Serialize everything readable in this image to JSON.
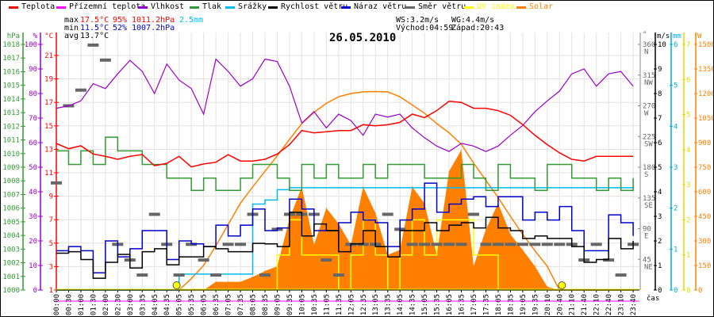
{
  "legend": [
    {
      "label": "Teplota",
      "color": "#ff0000"
    },
    {
      "label": "Přízemní teplota",
      "color": "#ff00ff"
    },
    {
      "label": "Vlhkost",
      "color": "#9900cc"
    },
    {
      "label": "Tlak",
      "color": "#339933"
    },
    {
      "label": "Srážky",
      "color": "#00bbee"
    },
    {
      "label": "Rychlost větru",
      "color": "#000000"
    },
    {
      "label": "Náraz větru",
      "color": "#0000cc"
    },
    {
      "label": "Směr větru",
      "color": "#666666"
    },
    {
      "label": "UV index",
      "color": "#ffff00"
    },
    {
      "label": "Solar",
      "color": "#ff8000"
    }
  ],
  "stats": {
    "max_label": "max",
    "max_temp": "17.5°C",
    "max_hum": "95%",
    "max_press": "1011.2hPa",
    "rain": "2.5mm",
    "min_label": "min",
    "min_temp": "11.5°C",
    "min_hum": "52%",
    "min_press": "1007.2hPa",
    "avg_label": "avg",
    "avg_temp": "13.7°C",
    "ws": "WS:3.2m/s",
    "wg": "WG:4.4m/s",
    "sunrise": "Východ:04:59",
    "sunset": "Západ:20:43"
  },
  "chart_data": {
    "type": "line",
    "title": "26.05.2010",
    "xlabel": "čas",
    "x": [
      "00:00",
      "00:30",
      "01:00",
      "01:30",
      "02:00",
      "02:30",
      "03:00",
      "03:35",
      "04:05",
      "04:35",
      "05:05",
      "05:35",
      "06:05",
      "06:35",
      "07:05",
      "07:35",
      "08:05",
      "08:35",
      "09:05",
      "09:35",
      "10:05",
      "10:35",
      "11:05",
      "11:35",
      "12:05",
      "12:35",
      "13:05",
      "13:35",
      "14:05",
      "14:35",
      "15:05",
      "15:35",
      "16:05",
      "16:35",
      "17:05",
      "17:35",
      "18:05",
      "18:35",
      "19:05",
      "19:35",
      "20:10",
      "20:40",
      "21:10",
      "21:40",
      "22:10",
      "22:40",
      "23:10",
      "23:40"
    ],
    "axes": {
      "hPa": {
        "unit": "hPa",
        "range": [
          1000,
          1018
        ],
        "ticks": [
          "1000",
          "1001",
          "1002",
          "1003",
          "1004",
          "1005",
          "1006",
          "1007",
          "1008",
          "1009",
          "1010",
          "1011",
          "1012",
          "1013",
          "1014",
          "1015",
          "1016",
          "1017",
          "1018"
        ]
      },
      "pct": {
        "unit": "%",
        "range": [
          0,
          100
        ],
        "ticks": [
          "0",
          "10",
          "20",
          "30",
          "40",
          "50",
          "60",
          "70",
          "80",
          "90",
          "100"
        ]
      },
      "degC": {
        "unit": "°C",
        "range": [
          1,
          21
        ],
        "ticks": [
          "1",
          "3",
          "5",
          "7",
          "9",
          "11",
          "13",
          "15",
          "17",
          "19",
          "21"
        ]
      },
      "deg": {
        "unit": "°",
        "range": [
          0,
          360
        ],
        "ticks": [
          {
            "v": 45,
            "t": "45",
            "d": "NE"
          },
          {
            "v": 90,
            "t": "90",
            "d": "E"
          },
          {
            "v": 135,
            "t": "135",
            "d": "SE"
          },
          {
            "v": 180,
            "t": "180",
            "d": "S"
          },
          {
            "v": 225,
            "t": "225",
            "d": "SW"
          },
          {
            "v": 270,
            "t": "270",
            "d": "W"
          },
          {
            "v": 315,
            "t": "315",
            "d": "NW"
          },
          {
            "v": 360,
            "t": "360",
            "d": "N"
          }
        ]
      },
      "ms": {
        "unit": "m/s",
        "range": [
          0,
          10
        ],
        "ticks": [
          "0",
          "1",
          "2",
          "3",
          "4",
          "5",
          "6",
          "7",
          "8",
          "9",
          "10"
        ]
      },
      "mm": {
        "unit": "mm",
        "range": [
          0,
          6
        ],
        "ticks": [
          "0",
          "1",
          "2",
          "3",
          "4",
          "5",
          "6"
        ]
      },
      "uv": {
        "unit": "",
        "range": [
          0,
          7
        ],
        "ticks": [
          "0",
          "1",
          "2",
          "3",
          "4",
          "5",
          "6",
          "7"
        ]
      },
      "w": {
        "unit": "W",
        "range": [
          0,
          1500
        ],
        "ticks": [
          "0",
          "150",
          "300",
          "450",
          "600",
          "750",
          "900",
          "1050",
          "1200",
          "1350",
          "1500"
        ]
      }
    },
    "series": [
      {
        "name": "Teplota",
        "axis": "degC",
        "color": "#ff0000",
        "values": [
          13.5,
          13.05,
          13.3,
          12.6,
          12.4,
          12.15,
          12.4,
          12.55,
          11.6,
          11.8,
          12.4,
          11.5,
          11.75,
          11.9,
          12.55,
          12.0,
          12.0,
          12.15,
          12.6,
          13.4,
          14.6,
          14.4,
          14.5,
          14.6,
          14.6,
          15.1,
          15.0,
          15.1,
          15.3,
          16.0,
          15.7,
          16.3,
          17.1,
          17.0,
          16.5,
          16.5,
          16.3,
          15.9,
          15.1,
          14.2,
          13.4,
          12.7,
          12.15,
          12.0,
          12.4,
          12.4,
          12.4,
          12.4
        ]
      },
      {
        "name": "Vlhkost",
        "axis": "pct",
        "color": "#9900cc",
        "values": [
          74,
          75,
          77,
          84,
          82,
          88,
          93.5,
          89,
          80,
          92,
          85.5,
          82,
          71.6,
          94,
          89,
          83,
          86,
          94,
          93,
          83,
          68,
          72.6,
          66,
          71.6,
          69,
          63,
          71.6,
          70.4,
          71.6,
          66,
          62,
          58.6,
          56.4,
          59.7,
          58.6,
          56.4,
          58.6,
          63,
          67,
          72.6,
          77,
          81,
          88,
          90,
          83,
          88,
          89,
          83
        ]
      },
      {
        "name": "Tlak",
        "axis": "hPa",
        "color": "#339933",
        "values": [
          1010.2,
          1009.2,
          1010.2,
          1009.2,
          1011.2,
          1010.2,
          1010.2,
          1009.2,
          1009.2,
          1008.2,
          1008.2,
          1007.3,
          1008.2,
          1007.3,
          1007.3,
          1008.2,
          1009.2,
          1009.2,
          1008.2,
          1007.3,
          1009.2,
          1008.2,
          1009.2,
          1008.2,
          1008.2,
          1009.2,
          1008.2,
          1009.2,
          1009.2,
          1009.2,
          1008.2,
          1008.2,
          1008.2,
          1009.2,
          1008.2,
          1007.3,
          1009.2,
          1008.2,
          1008.2,
          1007.3,
          1009.2,
          1009.2,
          1008.2,
          1008.2,
          1007.3,
          1008.2,
          1007.3,
          1008.2
        ]
      },
      {
        "name": "Srážky",
        "axis": "mm",
        "color": "#00bbee",
        "values": [
          0,
          0,
          0,
          0,
          0,
          0,
          0,
          0,
          0,
          0,
          0.39,
          0.39,
          0.39,
          0.39,
          0.39,
          0.39,
          2.1,
          2.2,
          2.45,
          2.5,
          2.5,
          2.5,
          2.5,
          2.5,
          2.5,
          2.5,
          2.5,
          2.5,
          2.5,
          2.5,
          2.5,
          2.5,
          2.5,
          2.5,
          2.5,
          2.5,
          2.5,
          2.5,
          2.5,
          2.5,
          2.5,
          2.5,
          2.5,
          2.5,
          2.5,
          2.5,
          2.5,
          2.5
        ]
      },
      {
        "name": "Solar (max)",
        "axis": "w",
        "color": "#ff8000",
        "values": [
          0,
          0,
          0,
          0,
          0,
          0,
          0,
          0,
          0,
          0,
          0,
          70,
          150,
          270,
          400,
          530,
          630,
          725,
          820,
          920,
          1016,
          1085,
          1140,
          1180,
          1200,
          1210,
          1212,
          1210,
          1180,
          1130,
          1080,
          1016,
          960,
          890,
          775,
          670,
          565,
          450,
          340,
          240,
          145,
          0,
          0,
          0,
          0,
          0,
          0,
          0
        ]
      },
      {
        "name": "Solar",
        "axis": "w",
        "color": "#ff8000",
        "values": [
          0,
          0,
          0,
          0,
          0,
          0,
          0,
          0,
          0,
          0,
          0,
          0,
          0,
          50,
          50,
          50,
          80,
          116,
          145,
          435,
          630,
          275,
          500,
          405,
          275,
          630,
          470,
          215,
          245,
          630,
          530,
          215,
          725,
          855,
          145,
          370,
          530,
          340,
          245,
          145,
          20,
          0,
          0,
          0,
          0,
          0,
          0,
          0
        ]
      },
      {
        "name": "UV index",
        "axis": "uv",
        "color": "#ffff00",
        "values": [
          0,
          0,
          0,
          0,
          0,
          0,
          0,
          0,
          0,
          0,
          0,
          0,
          0,
          0,
          0,
          0,
          0,
          0,
          1,
          2,
          1,
          1,
          1,
          0,
          1,
          2,
          1,
          0,
          1,
          2,
          1,
          2,
          2,
          2,
          1,
          1,
          0,
          0,
          0,
          0,
          0,
          0,
          0,
          0,
          0,
          0,
          0,
          0
        ]
      },
      {
        "name": "Rychlost větru",
        "axis": "ms",
        "color": "#000000",
        "values": [
          1.5,
          1.56,
          1.24,
          0.48,
          1.13,
          1.45,
          0.9,
          1.56,
          1.68,
          1.03,
          1.35,
          1.35,
          1.77,
          1.68,
          1.56,
          1.56,
          1.9,
          1.88,
          1.77,
          3.17,
          2.2,
          2.69,
          2.42,
          1.56,
          1.88,
          2.42,
          1.77,
          1.35,
          2.42,
          2.42,
          2.74,
          2.42,
          2.64,
          2.74,
          2.53,
          2.96,
          2.53,
          2.42,
          2.1,
          2.2,
          2.1,
          2.1,
          1.77,
          1.13,
          1.24,
          2.1,
          1.68,
          2.0
        ]
      },
      {
        "name": "Náraz větru",
        "axis": "ms",
        "color": "#0000cc",
        "values": [
          1.6,
          1.77,
          1.6,
          0.7,
          2.0,
          1.35,
          1.68,
          2.42,
          2.42,
          1.24,
          2.0,
          1.88,
          1.77,
          2.64,
          2.2,
          2.64,
          3.3,
          2.42,
          2.53,
          3.7,
          3.3,
          2.42,
          2.42,
          2.74,
          3.17,
          2.85,
          2.74,
          1.77,
          2.85,
          3.3,
          4.35,
          3.17,
          3.5,
          3.7,
          3.8,
          3.4,
          3.8,
          3.8,
          2.85,
          3.17,
          2.85,
          3.4,
          2.42,
          1.6,
          1.6,
          3.06,
          2.74,
          2.2
        ]
      },
      {
        "name": "Směr větru",
        "axis": "deg",
        "color": "#666666",
        "values": [
          157,
          270,
          293,
          359,
          337,
          67,
          44,
          22,
          111,
          67,
          22,
          67,
          44,
          22,
          67,
          67,
          111,
          22,
          89,
          111,
          111,
          111,
          44,
          22,
          67,
          67,
          67,
          111,
          89,
          67,
          67,
          67,
          67,
          67,
          111,
          67,
          67,
          67,
          67,
          67,
          67,
          67,
          67,
          44,
          67,
          44,
          22,
          67
        ]
      }
    ]
  }
}
